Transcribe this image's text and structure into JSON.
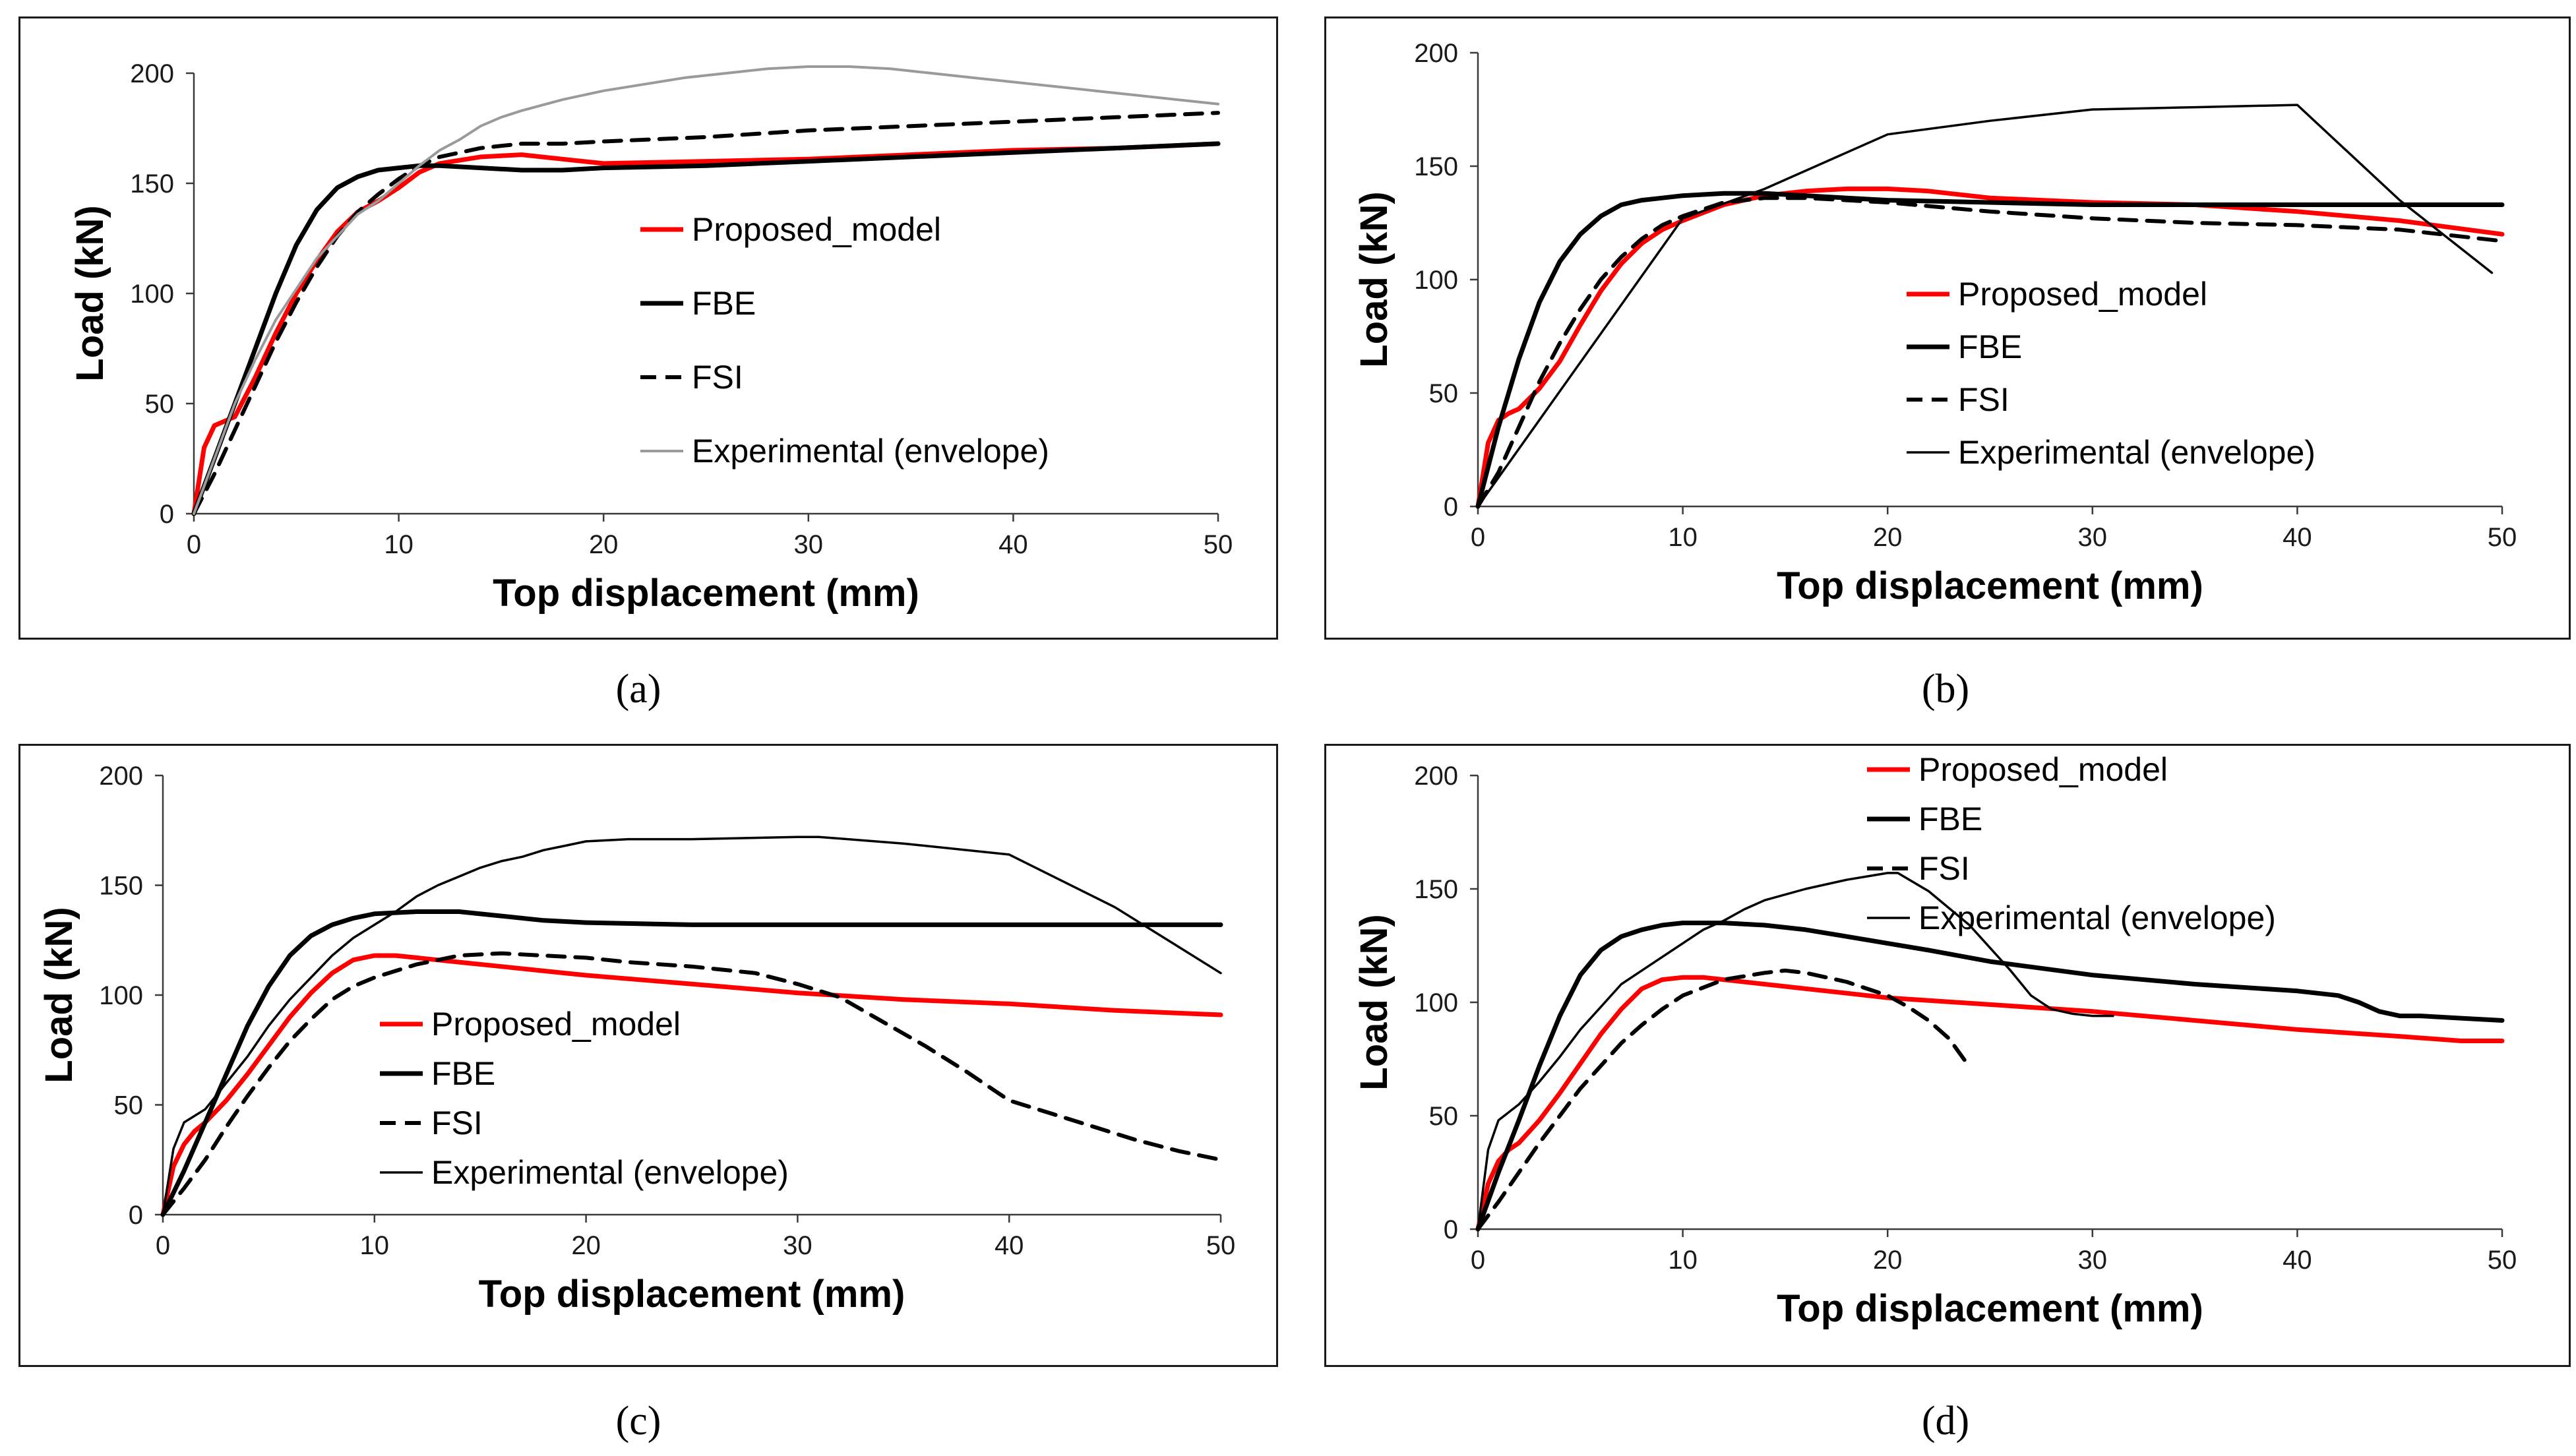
{
  "captions": [
    "(a)",
    "(b)",
    "(c)",
    "(d)"
  ],
  "colors": {
    "proposed": "#ff0000",
    "fbe": "#000000",
    "fsi": "#000000",
    "experimental_a": "#9a9a9a",
    "experimental_bcd": "#000000"
  },
  "chart_data": [
    {
      "type": "line",
      "xlabel": "Top displacement (mm)",
      "ylabel": "Load (kN)",
      "xlim": [
        0,
        50
      ],
      "ylim": [
        0,
        200
      ],
      "xticks": [
        "0",
        "10",
        "20",
        "30",
        "40",
        "50"
      ],
      "yticks": [
        "0",
        "50",
        "100",
        "150",
        "200"
      ],
      "legend_placement": "center-right",
      "series": [
        {
          "name": "Proposed_model",
          "style": "red",
          "x": [
            0,
            0.5,
            1,
            1.5,
            2,
            3,
            4,
            5,
            6,
            7,
            8,
            9,
            10,
            11,
            12,
            14,
            16,
            18,
            20,
            25,
            30,
            35,
            40,
            45,
            50
          ],
          "y": [
            0,
            30,
            40,
            42,
            44,
            62,
            82,
            100,
            115,
            128,
            137,
            142,
            148,
            155,
            159,
            162,
            163,
            161,
            159,
            160,
            161,
            163,
            165,
            166,
            168
          ]
        },
        {
          "name": "FBE",
          "style": "thick",
          "x": [
            0,
            1,
            2,
            3,
            4,
            5,
            6,
            7,
            8,
            9,
            10,
            11,
            12,
            14,
            16,
            18,
            20,
            25,
            30,
            35,
            40,
            45,
            50
          ],
          "y": [
            0,
            25,
            50,
            75,
            100,
            122,
            138,
            148,
            153,
            156,
            157,
            158,
            158,
            157,
            156,
            156,
            157,
            158,
            160,
            162,
            164,
            166,
            168
          ]
        },
        {
          "name": "FSI",
          "style": "dashed",
          "x": [
            0,
            1,
            2,
            3,
            4,
            5,
            6,
            7,
            8,
            9,
            10,
            11,
            12,
            14,
            16,
            18,
            20,
            25,
            30,
            35,
            40,
            45,
            50
          ],
          "y": [
            0,
            18,
            38,
            58,
            78,
            96,
            112,
            126,
            137,
            145,
            152,
            158,
            162,
            166,
            168,
            168,
            169,
            171,
            174,
            176,
            178,
            180,
            182
          ]
        },
        {
          "name": "Experimental (envelope)",
          "style": "gray",
          "x": [
            0,
            1,
            2,
            3,
            4,
            5,
            6,
            7,
            8,
            9,
            10,
            11,
            12,
            13,
            14,
            15,
            16,
            18,
            20,
            22,
            24,
            26,
            28,
            30,
            32,
            34,
            36,
            38,
            40,
            42,
            44,
            46,
            48,
            50
          ],
          "y": [
            0,
            25,
            50,
            70,
            88,
            102,
            116,
            126,
            136,
            142,
            150,
            158,
            165,
            170,
            176,
            180,
            183,
            188,
            192,
            195,
            198,
            200,
            202,
            203,
            203,
            202,
            200,
            198,
            196,
            194,
            192,
            190,
            188,
            186
          ]
        }
      ]
    },
    {
      "type": "line",
      "xlabel": "Top displacement (mm)",
      "ylabel": "Load (kN)",
      "xlim": [
        0,
        50
      ],
      "ylim": [
        0,
        200
      ],
      "xticks": [
        "0",
        "10",
        "20",
        "30",
        "40",
        "50"
      ],
      "yticks": [
        "0",
        "50",
        "100",
        "150",
        "200"
      ],
      "legend_placement": "center-right",
      "series": [
        {
          "name": "Proposed_model",
          "style": "red",
          "x": [
            0,
            0.5,
            1,
            1.5,
            2,
            3,
            4,
            5,
            6,
            7,
            8,
            9,
            10,
            12,
            14,
            16,
            18,
            20,
            22,
            25,
            30,
            35,
            40,
            45,
            50
          ],
          "y": [
            0,
            28,
            38,
            41,
            43,
            52,
            64,
            80,
            95,
            107,
            116,
            122,
            126,
            133,
            137,
            139,
            140,
            140,
            139,
            136,
            134,
            133,
            130,
            126,
            120
          ]
        },
        {
          "name": "FBE",
          "style": "thick",
          "x": [
            0,
            1,
            2,
            3,
            4,
            5,
            6,
            7,
            8,
            9,
            10,
            12,
            14,
            16,
            18,
            20,
            25,
            30,
            35,
            40,
            45,
            50
          ],
          "y": [
            0,
            35,
            65,
            90,
            108,
            120,
            128,
            133,
            135,
            136,
            137,
            138,
            138,
            137,
            136,
            135,
            134,
            133,
            133,
            133,
            133,
            133
          ]
        },
        {
          "name": "FSI",
          "style": "dashed",
          "x": [
            0,
            1,
            2,
            3,
            4,
            5,
            6,
            7,
            8,
            9,
            10,
            12,
            14,
            16,
            18,
            20,
            25,
            30,
            35,
            40,
            45,
            50
          ],
          "y": [
            0,
            15,
            35,
            55,
            72,
            87,
            100,
            110,
            118,
            124,
            128,
            134,
            136,
            136,
            135,
            134,
            130,
            127,
            125,
            124,
            122,
            117
          ]
        },
        {
          "name": "Experimental (envelope)",
          "style": "thin",
          "x": [
            0,
            10,
            14,
            20,
            25,
            30,
            35,
            40,
            45,
            49.5
          ],
          "y": [
            0,
            127,
            140,
            164,
            170,
            175,
            176,
            177,
            135,
            103
          ]
        }
      ]
    },
    {
      "type": "line",
      "xlabel": "Top displacement (mm)",
      "ylabel": "Load (kN)",
      "xlim": [
        0,
        50
      ],
      "ylim": [
        0,
        200
      ],
      "xticks": [
        "0",
        "10",
        "20",
        "30",
        "40",
        "50"
      ],
      "yticks": [
        "0",
        "50",
        "100",
        "150",
        "200"
      ],
      "legend_placement": "center",
      "series": [
        {
          "name": "Proposed_model",
          "style": "red",
          "x": [
            0,
            0.5,
            1,
            1.5,
            2,
            3,
            4,
            5,
            6,
            7,
            8,
            9,
            10,
            11,
            12,
            14,
            16,
            18,
            20,
            25,
            30,
            35,
            40,
            45,
            50
          ],
          "y": [
            0,
            22,
            32,
            38,
            42,
            52,
            64,
            77,
            90,
            101,
            110,
            116,
            118,
            118,
            117,
            115,
            113,
            111,
            109,
            105,
            101,
            98,
            96,
            93,
            91
          ]
        },
        {
          "name": "FBE",
          "style": "thick",
          "x": [
            0,
            1,
            2,
            3,
            4,
            5,
            6,
            7,
            8,
            9,
            10,
            12,
            14,
            16,
            18,
            20,
            25,
            30,
            35,
            40,
            45,
            50
          ],
          "y": [
            0,
            20,
            42,
            64,
            86,
            104,
            118,
            127,
            132,
            135,
            137,
            138,
            138,
            136,
            134,
            133,
            132,
            132,
            132,
            132,
            132,
            132
          ]
        },
        {
          "name": "FSI",
          "style": "dashed",
          "x": [
            0,
            1,
            2,
            3,
            4,
            5,
            6,
            7,
            8,
            9,
            10,
            12,
            14,
            16,
            18,
            20,
            22,
            25,
            28,
            30,
            32,
            34,
            36,
            38,
            40,
            42,
            44,
            46,
            48,
            50
          ],
          "y": [
            0,
            12,
            25,
            40,
            54,
            67,
            79,
            89,
            98,
            104,
            108,
            114,
            118,
            119,
            118,
            117,
            115,
            113,
            110,
            105,
            99,
            88,
            77,
            65,
            52,
            46,
            40,
            34,
            29,
            25
          ]
        },
        {
          "name": "Experimental (envelope)",
          "style": "thin",
          "x": [
            0,
            0.5,
            1,
            2,
            3,
            4,
            5,
            6,
            7,
            8,
            9,
            10,
            11,
            12,
            13,
            14,
            15,
            16,
            17,
            18,
            19,
            20,
            22,
            25,
            30,
            31,
            35,
            40,
            45,
            50
          ],
          "y": [
            0,
            30,
            42,
            48,
            60,
            72,
            86,
            98,
            108,
            118,
            126,
            132,
            138,
            145,
            150,
            154,
            158,
            161,
            163,
            166,
            168,
            170,
            171,
            171,
            172,
            172,
            169,
            164,
            140,
            110
          ]
        }
      ]
    },
    {
      "type": "line",
      "xlabel": "Top displacement (mm)",
      "ylabel": "Load (kN)",
      "xlim": [
        0,
        50
      ],
      "ylim": [
        0,
        200
      ],
      "xticks": [
        "0",
        "10",
        "20",
        "30",
        "40",
        "50"
      ],
      "yticks": [
        "0",
        "50",
        "100",
        "150",
        "200"
      ],
      "legend_placement": "top-right",
      "series": [
        {
          "name": "Proposed_model",
          "style": "red",
          "x": [
            0,
            0.5,
            1,
            1.5,
            2,
            3,
            4,
            5,
            6,
            7,
            8,
            9,
            10,
            11,
            12,
            14,
            16,
            18,
            20,
            25,
            30,
            35,
            40,
            45,
            48,
            50
          ],
          "y": [
            0,
            20,
            30,
            35,
            38,
            48,
            60,
            73,
            86,
            97,
            106,
            110,
            111,
            111,
            110,
            108,
            106,
            104,
            102,
            99,
            96,
            92,
            88,
            85,
            83,
            83
          ]
        },
        {
          "name": "FBE",
          "style": "thick",
          "x": [
            0,
            1,
            2,
            3,
            4,
            5,
            6,
            7,
            8,
            9,
            10,
            12,
            14,
            16,
            18,
            20,
            22,
            25,
            30,
            35,
            40,
            42,
            43,
            44,
            45,
            46,
            48,
            50
          ],
          "y": [
            0,
            25,
            48,
            72,
            94,
            112,
            123,
            129,
            132,
            134,
            135,
            135,
            134,
            132,
            129,
            126,
            123,
            118,
            112,
            108,
            105,
            103,
            100,
            96,
            94,
            94,
            93,
            92
          ]
        },
        {
          "name": "FSI",
          "style": "dashed",
          "x": [
            0,
            1,
            2,
            3,
            4,
            5,
            6,
            7,
            8,
            9,
            10,
            12,
            14,
            15,
            16,
            18,
            20,
            21,
            22,
            23,
            23.8
          ],
          "y": [
            0,
            12,
            25,
            38,
            50,
            62,
            72,
            82,
            90,
            97,
            103,
            110,
            113,
            114,
            113,
            109,
            103,
            98,
            92,
            84,
            74
          ]
        },
        {
          "name": "Experimental (envelope)",
          "style": "thin",
          "x": [
            0,
            0.5,
            1,
            2,
            3,
            4,
            5,
            6,
            7,
            8,
            9,
            10,
            11,
            12,
            13,
            14,
            16,
            18,
            20,
            20.5,
            22,
            24,
            26,
            27,
            28,
            29,
            30,
            31
          ],
          "y": [
            0,
            35,
            48,
            55,
            65,
            76,
            88,
            98,
            108,
            114,
            120,
            126,
            132,
            136,
            141,
            145,
            150,
            154,
            157,
            157,
            149,
            134,
            114,
            103,
            97,
            95,
            94,
            94
          ]
        }
      ]
    }
  ]
}
